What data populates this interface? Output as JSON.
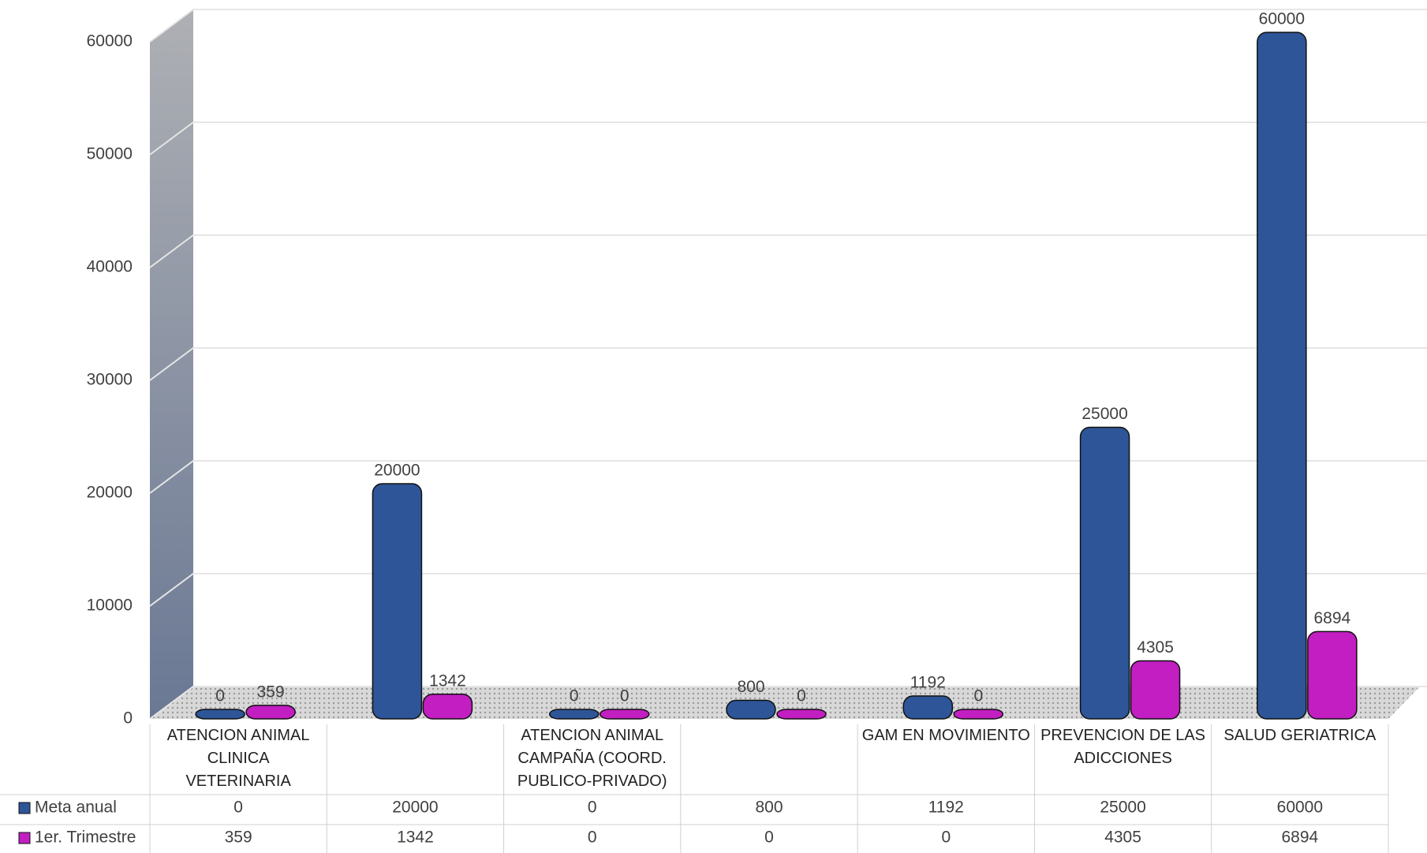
{
  "chart_data": {
    "type": "bar",
    "categories": [
      "ATENCION ANIMAL CLINICA VETERINARIA",
      null,
      "ATENCION ANIMAL CAMPAÑA (COORD. PUBLICO-PRIVADO)",
      null,
      "GAM EN MOVIMIENTO",
      "PREVENCION DE LAS ADICCIONES",
      "SALUD GERIATRICA"
    ],
    "series": [
      {
        "name": "Meta anual",
        "color": "#2e5597",
        "values": [
          0,
          20000,
          0,
          800,
          1192,
          25000,
          60000
        ]
      },
      {
        "name": "1er. Trimestre",
        "color": "#c21ec2",
        "values": [
          359,
          1342,
          0,
          0,
          0,
          4305,
          6894
        ]
      }
    ],
    "ylim": [
      0,
      60000
    ],
    "yticks": [
      0,
      10000,
      20000,
      30000,
      40000,
      50000,
      60000
    ],
    "grid": true
  }
}
